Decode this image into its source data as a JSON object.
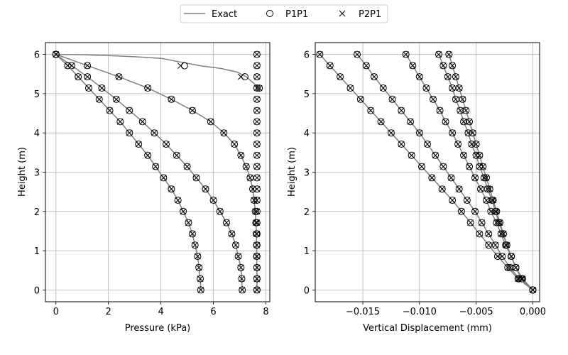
{
  "legend": {
    "entries": [
      {
        "label": "Exact",
        "marker": "line",
        "color": "#808080"
      },
      {
        "label": "P1P1",
        "marker": "circle",
        "color": "#000000"
      },
      {
        "label": "P2P1",
        "marker": "x",
        "color": "#000000"
      }
    ],
    "placement": "top-center"
  },
  "chart_data": [
    {
      "type": "line",
      "xlabel": "Pressure (kPa)",
      "ylabel": "Height (m)",
      "xlim": [
        -0.4,
        8.15
      ],
      "ylim": [
        -0.3,
        6.3
      ],
      "xticks": [
        0,
        2,
        4,
        6,
        8
      ],
      "yticks": [
        0,
        1,
        2,
        3,
        4,
        5,
        6
      ],
      "xtick_labels": [
        "0",
        "2",
        "4",
        "6",
        "8"
      ],
      "ytick_labels": [
        "0",
        "1",
        "2",
        "3",
        "4",
        "5",
        "6"
      ],
      "grid": true,
      "heights": [
        6.0,
        5.714,
        5.429,
        5.143,
        4.857,
        4.571,
        4.286,
        4.0,
        3.714,
        3.429,
        3.143,
        2.857,
        2.571,
        2.286,
        2.0,
        1.714,
        1.429,
        1.143,
        0.857,
        0.571,
        0.286,
        0.0
      ],
      "curves": [
        {
          "x": [
            0.0,
            1.2,
            2.4,
            3.5,
            4.4,
            5.2,
            5.9,
            6.4,
            6.8,
            7.05,
            7.25,
            7.4,
            7.5,
            7.55,
            7.6,
            7.62,
            7.64,
            7.65,
            7.65,
            7.66,
            7.66,
            7.66
          ]
        },
        {
          "x": [
            0.0,
            0.6,
            1.2,
            1.75,
            2.3,
            2.8,
            3.3,
            3.75,
            4.2,
            4.6,
            5.0,
            5.35,
            5.7,
            6.0,
            6.25,
            6.5,
            6.7,
            6.85,
            6.95,
            7.05,
            7.08,
            7.1
          ]
        },
        {
          "x": [
            0.0,
            0.45,
            0.85,
            1.25,
            1.65,
            2.05,
            2.45,
            2.8,
            3.15,
            3.5,
            3.8,
            4.1,
            4.4,
            4.65,
            4.85,
            5.05,
            5.2,
            5.3,
            5.4,
            5.45,
            5.5,
            5.52
          ]
        }
      ],
      "surface_curve": {
        "exact": [
          [
            0.0,
            6.0
          ],
          [
            1.0,
            5.99
          ],
          [
            2.0,
            5.97
          ],
          [
            3.0,
            5.94
          ],
          [
            4.0,
            5.9
          ],
          [
            4.8,
            5.8
          ],
          [
            5.5,
            5.71
          ],
          [
            6.3,
            5.64
          ],
          [
            6.9,
            5.55
          ],
          [
            7.25,
            5.43
          ],
          [
            7.55,
            5.26
          ],
          [
            7.7,
            5.14
          ]
        ],
        "p1p1": [
          [
            0.0,
            6.0
          ],
          [
            4.9,
            5.71
          ],
          [
            7.2,
            5.43
          ],
          [
            7.75,
            5.14
          ]
        ],
        "p2p1": [
          [
            0.0,
            6.0
          ],
          [
            4.75,
            5.71
          ],
          [
            7.05,
            5.43
          ],
          [
            7.75,
            5.14
          ]
        ]
      },
      "steady_column": {
        "x": 7.66,
        "heights": [
          6.0,
          5.714,
          5.429,
          5.143,
          4.857,
          4.571,
          4.286,
          4.0,
          3.714,
          3.429,
          3.143,
          2.857,
          2.571,
          2.286,
          2.0,
          1.714,
          1.429,
          1.143,
          0.857,
          0.571,
          0.286,
          0.0
        ]
      }
    },
    {
      "type": "line",
      "xlabel": "Vertical Displacement (mm)",
      "ylabel": "Height (m)",
      "xlim": [
        -0.0192,
        0.0006
      ],
      "ylim": [
        -0.3,
        6.3
      ],
      "xticks": [
        -0.015,
        -0.01,
        -0.005,
        0.0
      ],
      "yticks": [
        0,
        1,
        2,
        3,
        4,
        5,
        6
      ],
      "xtick_labels": [
        "−0.015",
        "−0.010",
        "−0.005",
        "0.000"
      ],
      "ytick_labels": [
        "0",
        "1",
        "2",
        "3",
        "4",
        "5",
        "6"
      ],
      "grid": true,
      "heights": [
        6.0,
        5.714,
        5.429,
        5.143,
        4.857,
        4.571,
        4.286,
        4.0,
        3.714,
        3.429,
        3.143,
        2.857,
        2.571,
        2.286,
        2.0,
        1.714,
        1.429,
        1.143,
        0.857,
        0.571,
        0.286,
        0.0
      ],
      "curves": [
        {
          "x": [
            -0.0074,
            -0.0071,
            -0.0068,
            -0.0065,
            -0.0062,
            -0.0059,
            -0.0056,
            -0.0053,
            -0.005,
            -0.0047,
            -0.0044,
            -0.0041,
            -0.0038,
            -0.0035,
            -0.0032,
            -0.0029,
            -0.0026,
            -0.0023,
            -0.0019,
            -0.0015,
            -0.0009,
            0.0
          ]
        },
        {
          "x": [
            -0.0083,
            -0.0079,
            -0.0075,
            -0.0071,
            -0.0068,
            -0.0064,
            -0.0061,
            -0.0057,
            -0.0054,
            -0.005,
            -0.0047,
            -0.0043,
            -0.004,
            -0.0036,
            -0.0033,
            -0.003,
            -0.0026,
            -0.0023,
            -0.0019,
            -0.0015,
            -0.001,
            0.0
          ]
        },
        {
          "x": [
            -0.0112,
            -0.0106,
            -0.01,
            -0.0094,
            -0.0088,
            -0.0082,
            -0.0077,
            -0.0071,
            -0.0066,
            -0.0061,
            -0.0056,
            -0.0051,
            -0.0046,
            -0.0041,
            -0.0037,
            -0.0032,
            -0.0028,
            -0.0024,
            -0.0019,
            -0.0015,
            -0.001,
            0.0
          ]
        },
        {
          "x": [
            -0.0155,
            -0.0147,
            -0.014,
            -0.0132,
            -0.0124,
            -0.0116,
            -0.0108,
            -0.01,
            -0.0093,
            -0.0086,
            -0.0079,
            -0.0072,
            -0.0065,
            -0.0058,
            -0.0051,
            -0.0045,
            -0.0039,
            -0.0033,
            -0.0027,
            -0.002,
            -0.0012,
            0.0
          ]
        },
        {
          "x": [
            -0.0188,
            -0.0179,
            -0.017,
            -0.0161,
            -0.0152,
            -0.0143,
            -0.0134,
            -0.0125,
            -0.0116,
            -0.0107,
            -0.0098,
            -0.0089,
            -0.008,
            -0.0071,
            -0.0063,
            -0.0055,
            -0.0047,
            -0.0039,
            -0.0031,
            -0.0022,
            -0.0013,
            0.0
          ]
        }
      ]
    }
  ]
}
